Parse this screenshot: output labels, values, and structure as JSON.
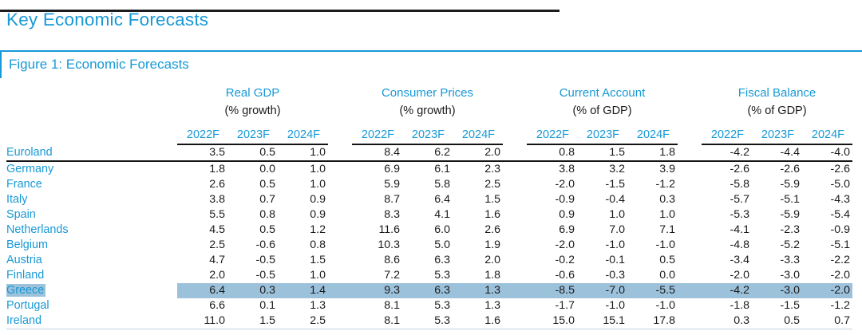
{
  "page_title": "Key Economic Forecasts",
  "figure_caption": "Figure 1: Economic Forecasts",
  "colors": {
    "accent_blue": "#1899d6",
    "highlight_band": "#9cc1db",
    "text_black": "#1a1a1a",
    "bottom_rule": "#c3d2e6"
  },
  "table": {
    "groups": [
      {
        "title": "Real GDP",
        "unit": "(% growth)"
      },
      {
        "title": "Consumer Prices",
        "unit": "(% growth)"
      },
      {
        "title": "Current Account",
        "unit": "(% of GDP)"
      },
      {
        "title": "Fiscal Balance",
        "unit": "(% of GDP)"
      }
    ],
    "year_headers": [
      "2022F",
      "2023F",
      "2024F"
    ],
    "rows": [
      {
        "country": "Euroland",
        "summary": true,
        "highlighted": false,
        "values": [
          "3.5",
          "0.5",
          "1.0",
          "8.4",
          "6.2",
          "2.0",
          "0.8",
          "1.5",
          "1.8",
          "-4.2",
          "-4.4",
          "-4.0"
        ]
      },
      {
        "country": "Germany",
        "summary": false,
        "highlighted": false,
        "values": [
          "1.8",
          "0.0",
          "1.0",
          "6.9",
          "6.1",
          "2.3",
          "3.8",
          "3.2",
          "3.9",
          "-2.6",
          "-2.6",
          "-2.6"
        ]
      },
      {
        "country": "France",
        "summary": false,
        "highlighted": false,
        "values": [
          "2.6",
          "0.5",
          "1.0",
          "5.9",
          "5.8",
          "2.5",
          "-2.0",
          "-1.5",
          "-1.2",
          "-5.8",
          "-5.9",
          "-5.0"
        ]
      },
      {
        "country": "Italy",
        "summary": false,
        "highlighted": false,
        "values": [
          "3.8",
          "0.7",
          "0.9",
          "8.7",
          "6.4",
          "1.5",
          "-0.9",
          "-0.4",
          "0.3",
          "-5.7",
          "-5.1",
          "-4.3"
        ]
      },
      {
        "country": "Spain",
        "summary": false,
        "highlighted": false,
        "values": [
          "5.5",
          "0.8",
          "0.9",
          "8.3",
          "4.1",
          "1.6",
          "0.9",
          "1.0",
          "1.0",
          "-5.3",
          "-5.9",
          "-5.4"
        ]
      },
      {
        "country": "Netherlands",
        "summary": false,
        "highlighted": false,
        "values": [
          "4.5",
          "0.5",
          "1.2",
          "11.6",
          "6.0",
          "2.6",
          "6.9",
          "7.0",
          "7.1",
          "-4.1",
          "-2.3",
          "-0.9"
        ]
      },
      {
        "country": "Belgium",
        "summary": false,
        "highlighted": false,
        "values": [
          "2.5",
          "-0.6",
          "0.8",
          "10.3",
          "5.0",
          "1.9",
          "-2.0",
          "-1.0",
          "-1.0",
          "-4.8",
          "-5.2",
          "-5.1"
        ]
      },
      {
        "country": "Austria",
        "summary": false,
        "highlighted": false,
        "values": [
          "4.7",
          "-0.5",
          "1.5",
          "8.6",
          "6.3",
          "2.0",
          "-0.2",
          "-0.1",
          "0.5",
          "-3.4",
          "-3.3",
          "-2.2"
        ]
      },
      {
        "country": "Finland",
        "summary": false,
        "highlighted": false,
        "values": [
          "2.0",
          "-0.5",
          "1.0",
          "7.2",
          "5.3",
          "1.8",
          "-0.6",
          "-0.3",
          "0.0",
          "-2.0",
          "-3.0",
          "-2.0"
        ]
      },
      {
        "country": "Greece",
        "summary": false,
        "highlighted": true,
        "values": [
          "6.4",
          "0.3",
          "1.4",
          "9.3",
          "6.3",
          "1.3",
          "-8.5",
          "-7.0",
          "-5.5",
          "-4.2",
          "-3.0",
          "-2.0"
        ]
      },
      {
        "country": "Portugal",
        "summary": false,
        "highlighted": false,
        "values": [
          "6.6",
          "0.1",
          "1.3",
          "8.1",
          "5.3",
          "1.3",
          "-1.7",
          "-1.0",
          "-1.0",
          "-1.8",
          "-1.5",
          "-1.2"
        ]
      },
      {
        "country": "Ireland",
        "summary": false,
        "highlighted": false,
        "values": [
          "11.0",
          "1.5",
          "2.5",
          "8.1",
          "5.3",
          "1.6",
          "15.0",
          "15.1",
          "17.8",
          "0.3",
          "0.5",
          "0.7"
        ]
      }
    ]
  }
}
